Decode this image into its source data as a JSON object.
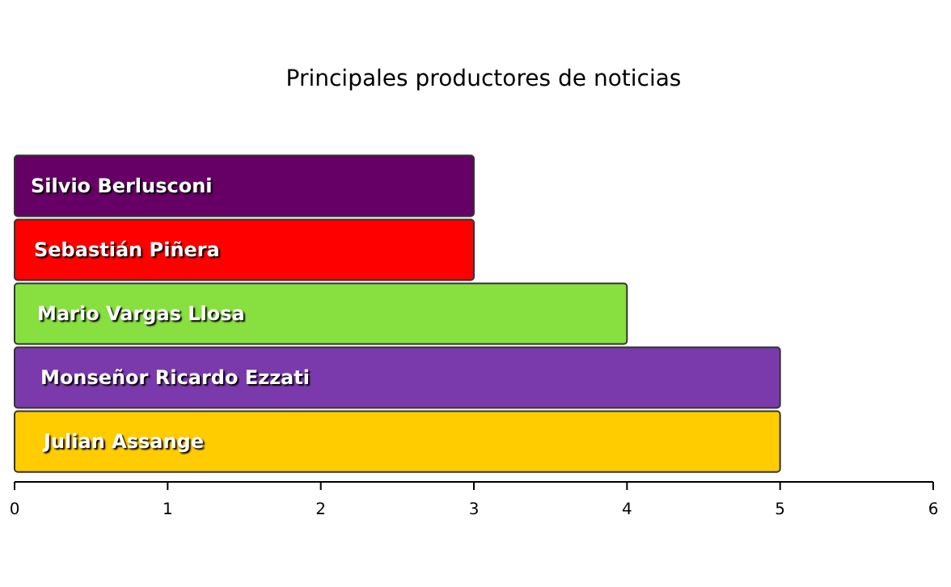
{
  "chart_data": {
    "type": "bar",
    "orientation": "horizontal",
    "title": "Principales productores de noticias",
    "categories": [
      "Silvio Berlusconi",
      "Sebastián Piñera",
      "Mario Vargas Llosa",
      "Monseñor Ricardo Ezzati",
      "Julian Assange"
    ],
    "values": [
      3,
      3,
      4,
      5,
      5
    ],
    "colors": [
      "#660066",
      "#ff0000",
      "#88e040",
      "#7b3aab",
      "#ffcc00"
    ],
    "xlim": [
      0,
      6
    ],
    "xticks": [
      0,
      1,
      2,
      3,
      4,
      5,
      6
    ],
    "grid": false
  }
}
